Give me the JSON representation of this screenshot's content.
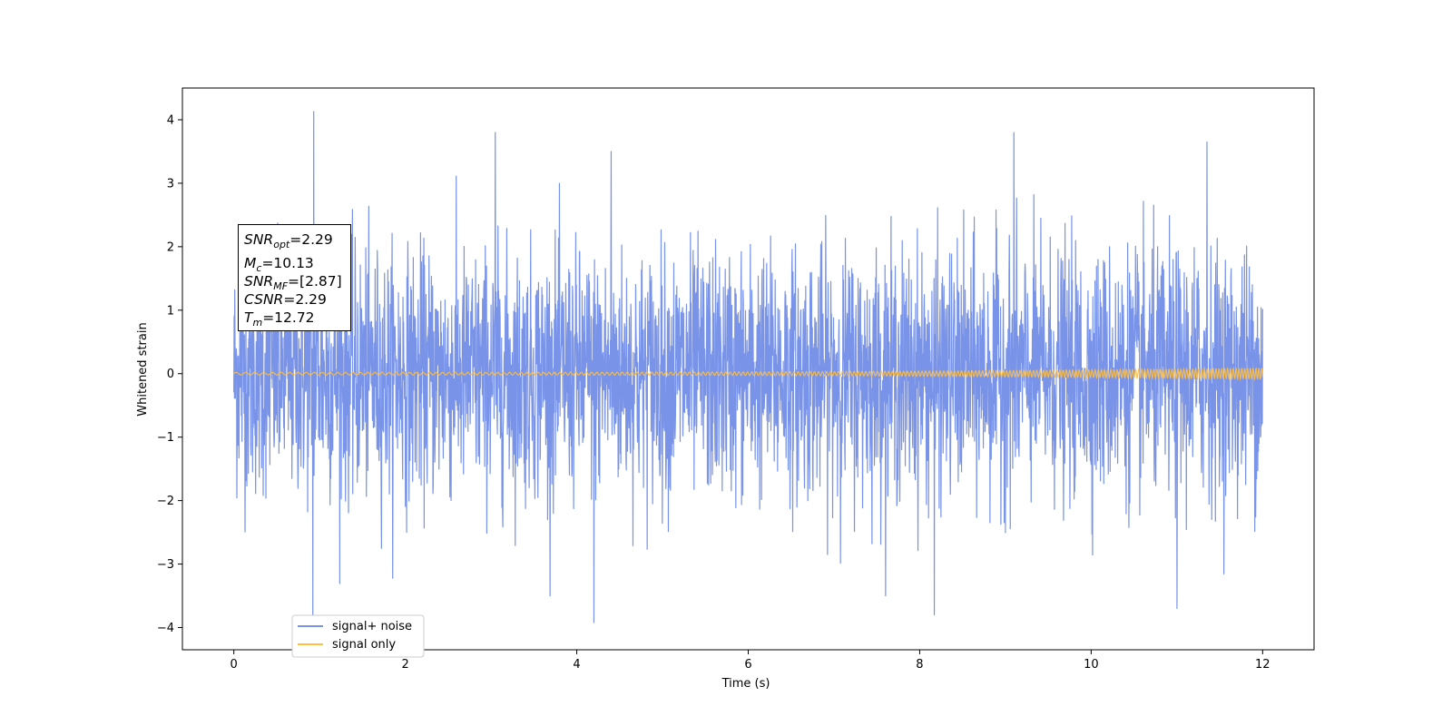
{
  "chart_data": {
    "type": "line",
    "x_axis": {
      "label": "Time (s)",
      "range": [
        -0.6,
        12.6
      ],
      "ticks": [
        0,
        2,
        4,
        6,
        8,
        10,
        12
      ]
    },
    "y_axis": {
      "label": "Whitened strain",
      "range": [
        -4.35,
        4.5
      ],
      "ticks": [
        -4,
        -3,
        -2,
        -1,
        0,
        1,
        2,
        3,
        4
      ]
    },
    "grid": false,
    "legend_position": "bottom-left",
    "series": [
      {
        "name": "signal+ noise",
        "color": "#7893e8",
        "x_range": [
          0,
          12
        ],
        "amplitude_band": {
          "typical": [
            -1.8,
            2.0
          ],
          "min": -3.92,
          "max": 4.13
        },
        "notable_peaks": [
          {
            "x": 0.93,
            "y": 4.13
          },
          {
            "x": 3.05,
            "y": 3.8
          },
          {
            "x": 4.4,
            "y": 3.5
          },
          {
            "x": 9.1,
            "y": 3.8
          },
          {
            "x": 11.35,
            "y": 3.65
          },
          {
            "x": 0.92,
            "y": -3.8
          },
          {
            "x": 4.2,
            "y": -3.92
          },
          {
            "x": 8.17,
            "y": -3.8
          },
          {
            "x": 11.0,
            "y": -3.7
          }
        ]
      },
      {
        "name": "signal only",
        "color": "#ffbf40",
        "x_range": [
          0,
          12
        ],
        "amplitude_start": 0.02,
        "amplitude_end": 0.09
      }
    ],
    "annotation": [
      {
        "name": "SNR",
        "sub": "opt",
        "value": "=2.29"
      },
      {
        "name": "M",
        "sub": "c",
        "value": "=10.13"
      },
      {
        "name": "SNR",
        "sub": "MF",
        "value": "=[2.87]"
      },
      {
        "name": "CSNR",
        "sub": "",
        "value": "=2.29"
      },
      {
        "name": "T",
        "sub": "m",
        "value": "=12.72"
      }
    ]
  }
}
